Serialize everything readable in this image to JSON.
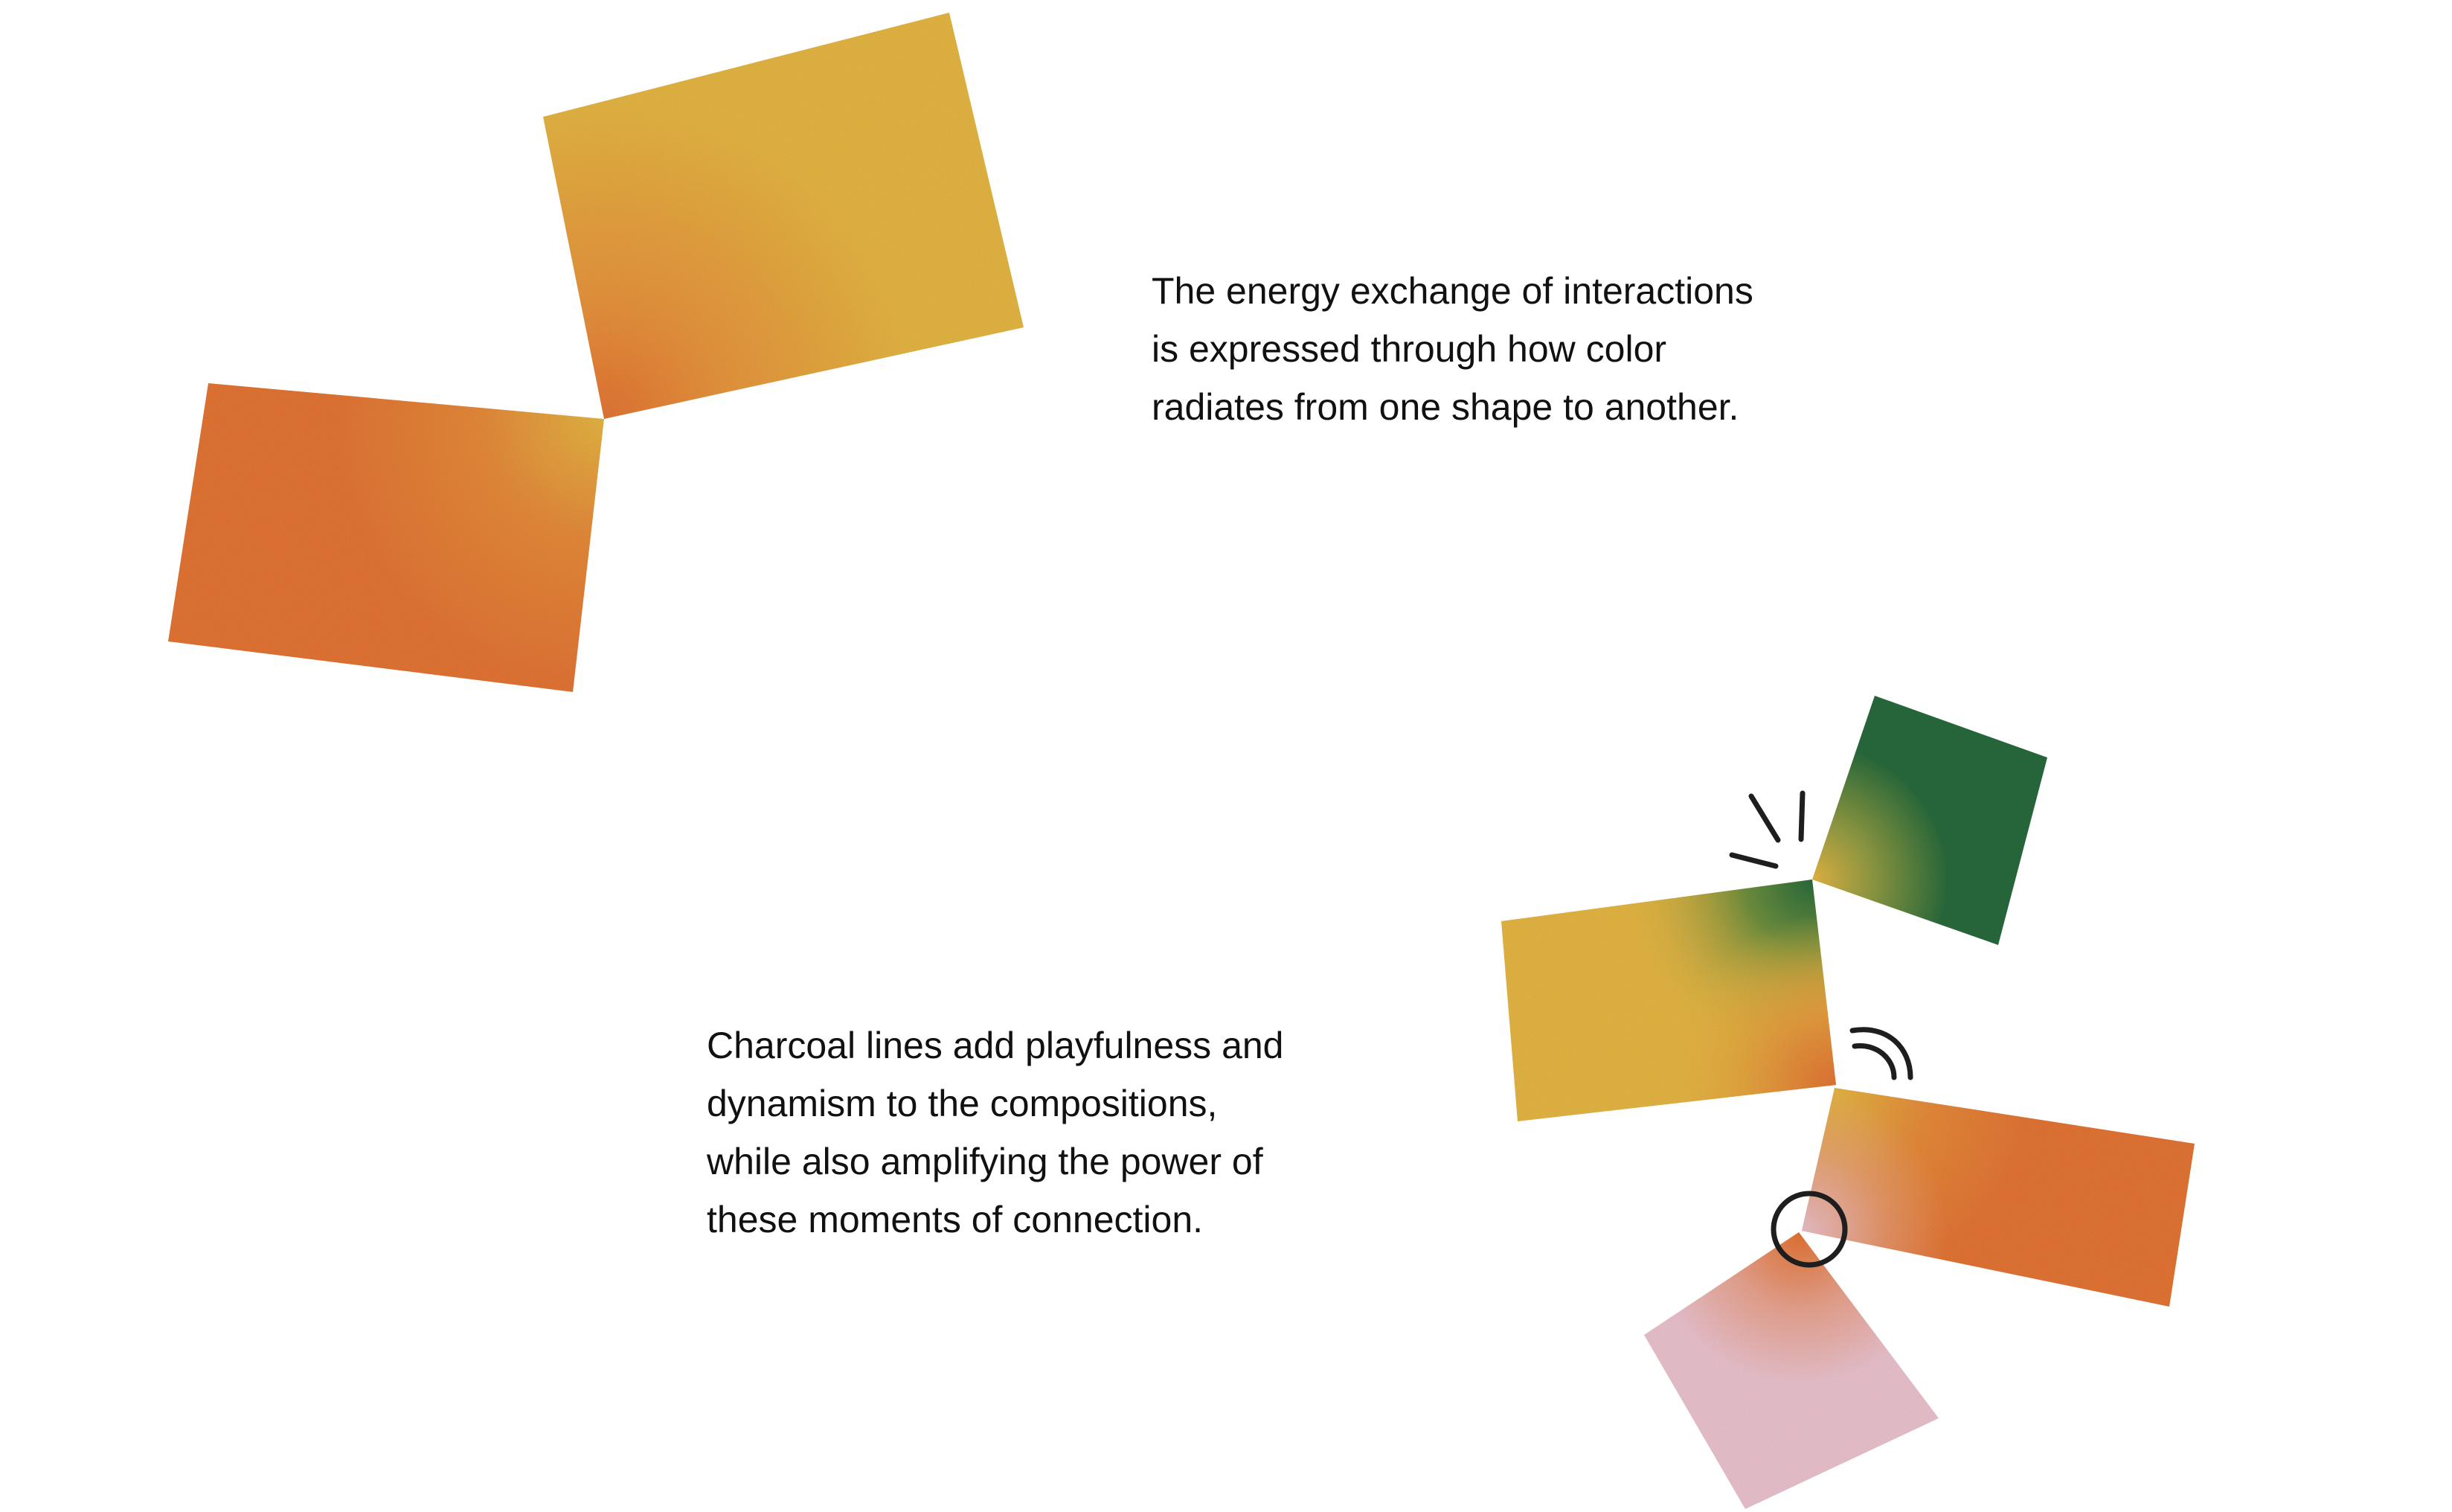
{
  "captions": {
    "top": [
      "The energy exchange of interactions",
      "is expressed through how color",
      "radiates from one shape to another."
    ],
    "bottom": [
      "Charcoal lines add playfulness and",
      "dynamism to the compositions,",
      "while also amplifying the power of",
      "these moments of connection."
    ]
  },
  "colors": {
    "background": "#ffffff",
    "yellow": "#E4B545",
    "orange": "#E27536",
    "green": "#2B6B3C",
    "pink": "#E9C1CC",
    "charcoal": "#1E1E1E",
    "text": "#111111"
  }
}
